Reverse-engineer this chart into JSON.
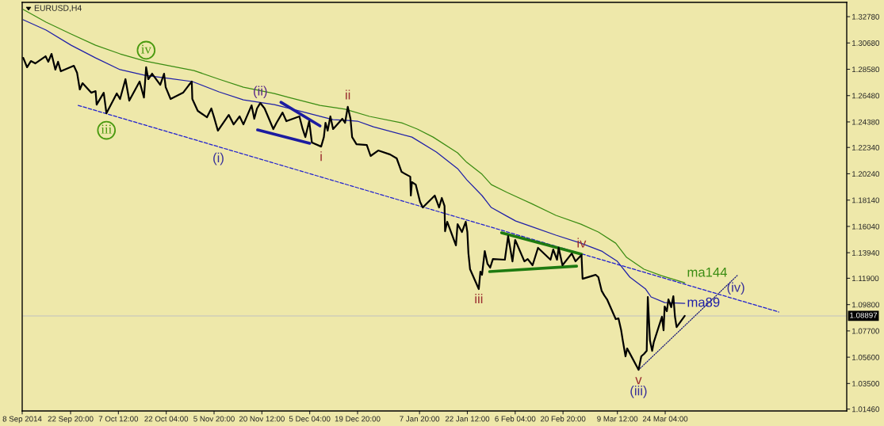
{
  "chart_data": {
    "type": "line",
    "title": "EURUSD,H4",
    "xlim": [
      "2014-09-08",
      "2015-05-18T20:00"
    ],
    "xticks": [
      {
        "value": "2014-09-08",
        "label": "8 Sep 2014"
      },
      {
        "value": "2014-09-22T20:00",
        "label": "22 Sep 20:00"
      },
      {
        "value": "2014-10-07T12:00",
        "label": "7 Oct 12:00"
      },
      {
        "value": "2014-10-22T04:00",
        "label": "22 Oct 04:00"
      },
      {
        "value": "2014-11-05T20:00",
        "label": "5 Nov 20:00"
      },
      {
        "value": "2014-11-20T12:00",
        "label": "20 Nov 12:00"
      },
      {
        "value": "2014-12-05T04:00",
        "label": "5 Dec 04:00"
      },
      {
        "value": "2014-12-19T20:00",
        "label": "19 Dec 20:00"
      },
      {
        "value": "2015-01-07T20:00",
        "label": "7 Jan 20:00"
      },
      {
        "value": "2015-01-22T12:00",
        "label": "22 Jan 12:00"
      },
      {
        "value": "2015-02-06T04:00",
        "label": "6 Feb 04:00"
      },
      {
        "value": "2015-02-20T20:00",
        "label": "20 Feb 20:00"
      },
      {
        "value": "2015-03-09T12:00",
        "label": "9 Mar 12:00"
      },
      {
        "value": "2015-03-24T04:00",
        "label": "24 Mar 04:00"
      }
    ],
    "ylim": [
      1.0131,
      1.3392
    ],
    "yticks": [
      {
        "value": 1.3278,
        "label": "1.32780"
      },
      {
        "value": 1.3068,
        "label": "1.30680"
      },
      {
        "value": 1.2858,
        "label": "1.28580"
      },
      {
        "value": 1.2648,
        "label": "1.26480"
      },
      {
        "value": 1.2438,
        "label": "1.24380"
      },
      {
        "value": 1.2234,
        "label": "1.22340"
      },
      {
        "value": 1.2024,
        "label": "1.20240"
      },
      {
        "value": 1.1814,
        "label": "1.18140"
      },
      {
        "value": 1.1604,
        "label": "1.16040"
      },
      {
        "value": 1.1394,
        "label": "1.13940"
      },
      {
        "value": 1.119,
        "label": "1.11900"
      },
      {
        "value": 1.098,
        "label": "1.09800"
      },
      {
        "value": 1.077,
        "label": "1.07700"
      },
      {
        "value": 1.056,
        "label": "1.05600"
      },
      {
        "value": 1.035,
        "label": "1.03500"
      },
      {
        "value": 1.0146,
        "label": "1.01460"
      }
    ],
    "series": [
      {
        "color": "#000000",
        "x": [
          "2014-09-08T08:00",
          "2014-09-09T12:00",
          "2014-09-10T16:00",
          "2014-09-12T00:00",
          "2014-09-15T04:00",
          "2014-09-16T00:00",
          "2014-09-17T00:00",
          "2014-09-18T04:00",
          "2014-09-19T00:00",
          "2014-09-19T20:00",
          "2014-09-23T20:00",
          "2014-09-24T20:00",
          "2014-09-25T16:00",
          "2014-09-26T12:00",
          "2014-09-29T04:00",
          "2014-09-30T12:00",
          "2014-09-30T20:00",
          "2014-10-03T00:00",
          "2014-10-03T20:00",
          "2014-10-07T00:00",
          "2014-10-08T00:00",
          "2014-10-09T16:00",
          "2014-10-10T20:00",
          "2014-10-14T00:00",
          "2014-10-15T08:00",
          "2014-10-16T00:00",
          "2014-10-16T16:00",
          "2014-10-17T20:00",
          "2014-10-20T08:00",
          "2014-10-21T12:00",
          "2014-10-22T00:00",
          "2014-10-23T12:00",
          "2014-10-27T08:00",
          "2014-10-29T00:00",
          "2014-10-30T00:00",
          "2014-10-30T04:00",
          "2014-10-31T20:00",
          "2014-11-03T16:00",
          "2014-11-05T00:00",
          "2014-11-05T20:00",
          "2014-11-07T00:00",
          "2014-11-10T08:00",
          "2014-11-11T20:00",
          "2014-11-13T16:00",
          "2014-11-14T20:00",
          "2014-11-17T08:00",
          "2014-11-18T04:00",
          "2014-11-19T00:00",
          "2014-11-20T00:00",
          "2014-11-21T08:00",
          "2014-11-24T00:00",
          "2014-11-25T00:00",
          "2014-11-26T20:00",
          "2014-11-28T00:00",
          "2014-12-02T00:00",
          "2014-12-03T00:00",
          "2014-12-03T20:00",
          "2014-12-05T00:00",
          "2014-12-05T20:00",
          "2014-12-08T16:00",
          "2014-12-09T12:00",
          "2014-12-10T00:00",
          "2014-12-10T16:00",
          "2014-12-11T12:00",
          "2014-12-12T08:00",
          "2014-12-15T04:00",
          "2014-12-16T00:00",
          "2014-12-16T20:00",
          "2014-12-17T16:00",
          "2014-12-18T04:00",
          "2014-12-19T12:00",
          "2014-12-22T16:00",
          "2014-12-23T20:00",
          "2014-12-26T04:00",
          "2014-12-29T20:00",
          "2014-12-31T20:00",
          "2015-01-02T08:00",
          "2015-01-05T00:00",
          "2015-01-05T04:00",
          "2015-01-05T12:00",
          "2015-01-06T16:00",
          "2015-01-08T00:00",
          "2015-01-08T20:00",
          "2015-01-12T12:00",
          "2015-01-13T20:00",
          "2015-01-14T16:00",
          "2015-01-15T12:00",
          "2015-01-15T16:00",
          "2015-01-16T08:00",
          "2015-01-19T00:00",
          "2015-01-19T12:00",
          "2015-01-20T20:00",
          "2015-01-22T00:00",
          "2015-01-22T12:00",
          "2015-01-22T20:00",
          "2015-01-23T08:00",
          "2015-01-26T00:00",
          "2015-01-26T12:00",
          "2015-01-27T00:00",
          "2015-01-27T20:00",
          "2015-01-28T16:00",
          "2015-01-29T12:00",
          "2015-01-30T08:00",
          "2015-02-03T00:00",
          "2015-02-04T00:00",
          "2015-02-05T08:00",
          "2015-02-06T04:00",
          "2015-02-09T00:00",
          "2015-02-10T00:00",
          "2015-02-11T12:00",
          "2015-02-13T04:00",
          "2015-02-17T00:00",
          "2015-02-17T20:00",
          "2015-02-19T00:00",
          "2015-02-19T12:00",
          "2015-02-20T16:00",
          "2015-02-23T12:00",
          "2015-02-24T16:00",
          "2015-02-26T12:00",
          "2015-02-26T20:00",
          "2015-03-02T00:00",
          "2015-03-02T20:00",
          "2015-03-03T16:00",
          "2015-03-04T16:00",
          "2015-03-05T12:00",
          "2015-03-06T08:00",
          "2015-03-09T00:00",
          "2015-03-09T20:00",
          "2015-03-10T16:00",
          "2015-03-11T04:00",
          "2015-03-12T00:00",
          "2015-03-12T12:00",
          "2015-03-13T04:00",
          "2015-03-16T00:00",
          "2015-03-16T20:00",
          "2015-03-17T16:00",
          "2015-03-18T12:00",
          "2015-03-18T20:00",
          "2015-03-19T12:00",
          "2015-03-20T04:00",
          "2015-03-20T16:00",
          "2015-03-23T04:00",
          "2015-03-23T16:00",
          "2015-03-24T00:00",
          "2015-03-24T16:00",
          "2015-03-25T04:00",
          "2015-03-26T00:00",
          "2015-03-26T16:00",
          "2015-03-27T04:00",
          "2015-03-27T16:00",
          "2015-03-30T04:00"
        ],
        "values": [
          1.2949,
          1.2874,
          1.2924,
          1.2905,
          1.2962,
          1.2918,
          1.2981,
          1.2855,
          1.2918,
          1.2842,
          1.2886,
          1.2829,
          1.2697,
          1.2747,
          1.2671,
          1.2684,
          1.2576,
          1.2671,
          1.2507,
          1.2665,
          1.2621,
          1.2779,
          1.2608,
          1.276,
          1.2633,
          1.2874,
          1.2779,
          1.2823,
          1.2734,
          1.2823,
          1.2715,
          1.2621,
          1.2671,
          1.2728,
          1.276,
          1.2621,
          1.2526,
          1.2475,
          1.2545,
          1.2475,
          1.2368,
          1.2494,
          1.2418,
          1.2482,
          1.2418,
          1.257,
          1.2463,
          1.2545,
          1.2589,
          1.2545,
          1.2381,
          1.2431,
          1.2513,
          1.2444,
          1.2482,
          1.2381,
          1.2317,
          1.2444,
          1.2273,
          1.2241,
          1.2317,
          1.2431,
          1.2368,
          1.2482,
          1.2381,
          1.2463,
          1.2431,
          1.2558,
          1.2463,
          1.2317,
          1.226,
          1.2254,
          1.2166,
          1.221,
          1.2178,
          1.2147,
          1.2039,
          1.2001,
          1.185,
          1.1957,
          1.1938,
          1.1799,
          1.1755,
          1.185,
          1.1755,
          1.1831,
          1.1767,
          1.1565,
          1.1641,
          1.1452,
          1.1622,
          1.1559,
          1.1641,
          1.1559,
          1.1388,
          1.1262,
          1.1104,
          1.1243,
          1.1218,
          1.1407,
          1.1306,
          1.1275,
          1.1344,
          1.1338,
          1.1527,
          1.1325,
          1.1496,
          1.1325,
          1.1344,
          1.1294,
          1.1433,
          1.1338,
          1.142,
          1.1338,
          1.1433,
          1.1294,
          1.1388,
          1.1325,
          1.1376,
          1.1186,
          1.1211,
          1.1218,
          1.1199,
          1.1091,
          1.1053,
          1.1022,
          1.0864,
          1.087,
          1.0775,
          1.0693,
          1.0567,
          1.063,
          1.0598,
          1.0459,
          1.0567,
          1.0586,
          1.0611,
          1.1041,
          1.0693,
          1.0611,
          1.068,
          1.0883,
          1.0775,
          1.0965,
          1.0927,
          1.1022,
          1.0959,
          1.1047,
          1.0883,
          1.08,
          1.089
        ]
      },
      {
        "name": "ma89",
        "color": "#1f1fa8",
        "x": [
          "2014-09-08T08:00",
          "2014-09-15T08:00",
          "2014-09-23T00:00",
          "2014-09-30T12:00",
          "2014-10-08T00:00",
          "2014-10-15T16:00",
          "2014-10-23T04:00",
          "2014-10-30T04:00",
          "2014-11-07T08:00",
          "2014-11-14T20:00",
          "2014-11-24T08:00",
          "2014-12-02T00:00",
          "2014-12-09T12:00",
          "2014-12-12T08:00",
          "2014-12-17T00:00",
          "2014-12-19T20:00",
          "2014-12-24T16:00",
          "2015-01-05T12:00",
          "2015-01-13T00:00",
          "2015-01-19T12:00",
          "2015-01-22T08:00",
          "2015-01-27T00:00",
          "2015-01-29T20:00",
          "2015-02-03T16:00",
          "2015-02-06T08:00",
          "2015-02-11T04:00",
          "2015-02-18T16:00",
          "2015-02-26T08:00",
          "2015-03-04T16:00",
          "2015-03-09T12:00",
          "2015-03-13T08:00",
          "2015-03-18T04:00",
          "2015-03-19T20:00",
          "2015-03-24T00:00",
          "2015-03-30T04:00"
        ],
        "values": [
          1.3253,
          1.3171,
          1.305,
          1.2949,
          1.2855,
          1.281,
          1.2785,
          1.276,
          1.2678,
          1.2614,
          1.2576,
          1.2526,
          1.2475,
          1.2456,
          1.245,
          1.2444,
          1.2399,
          1.2317,
          1.2197,
          1.2065,
          1.1976,
          1.185,
          1.1755,
          1.1685,
          1.1647,
          1.1603,
          1.1534,
          1.147,
          1.1407,
          1.1325,
          1.1199,
          1.1104,
          1.1041,
          1.0996,
          1.099
        ]
      },
      {
        "name": "ma144",
        "color": "#3a8c12",
        "x": [
          "2014-09-08T08:00",
          "2014-09-15T08:00",
          "2014-09-23T00:00",
          "2014-09-30T12:00",
          "2014-10-08T00:00",
          "2014-10-15T16:00",
          "2014-10-23T04:00",
          "2014-10-30T16:00",
          "2014-11-07T08:00",
          "2014-11-14T20:00",
          "2014-11-24T08:00",
          "2014-11-28T20:00",
          "2014-12-08T08:00",
          "2014-12-16T00:00",
          "2014-12-23T12:00",
          "2015-01-02T08:00",
          "2015-01-07T04:00",
          "2015-01-12T00:00",
          "2015-01-19T12:00",
          "2015-01-22T08:00",
          "2015-01-27T00:00",
          "2015-01-29T20:00",
          "2015-02-03T16:00",
          "2015-02-11T04:00",
          "2015-02-18T16:00",
          "2015-02-26T08:00",
          "2015-03-03T16:00",
          "2015-03-09T00:00",
          "2015-03-12T08:00",
          "2015-03-17T16:00",
          "2015-03-23T00:00",
          "2015-03-30T04:00"
        ],
        "values": [
          1.3335,
          1.3234,
          1.3139,
          1.305,
          1.2981,
          1.2924,
          1.2886,
          1.2848,
          1.2779,
          1.2715,
          1.2665,
          1.2633,
          1.257,
          1.2539,
          1.2482,
          1.2431,
          1.2381,
          1.2317,
          1.2191,
          1.2115,
          1.202,
          1.1938,
          1.1875,
          1.1786,
          1.1692,
          1.1622,
          1.1559,
          1.147,
          1.1357,
          1.1262,
          1.1211,
          1.1154
        ]
      },
      {
        "color": "#2020d0",
        "line_style": "dashed",
        "x": [
          "2014-09-25T04:00",
          "2015-04-28T00:00"
        ],
        "values": [
          1.257,
          1.0921
        ]
      },
      {
        "color": "#1a1a7a",
        "line_style": "dotted",
        "x": [
          "2015-03-16T00:00",
          "2015-04-15T12:00"
        ],
        "values": [
          1.0459,
          1.1218
        ]
      },
      {
        "color": "#1c1ca0",
        "x": [
          "2014-11-26T08:00",
          "2014-12-08T08:00"
        ],
        "values": [
          1.2595,
          1.2406
        ]
      },
      {
        "color": "#1c1ca0",
        "x": [
          "2014-11-19T04:00",
          "2014-12-05T04:00"
        ],
        "values": [
          1.2374,
          1.2267
        ]
      },
      {
        "color": "#1e7a10",
        "x": [
          "2015-02-02T00:00",
          "2015-02-26T12:00"
        ],
        "values": [
          1.1553,
          1.1382
        ]
      },
      {
        "color": "#1e7a10",
        "x": [
          "2015-01-29T08:00",
          "2015-02-25T00:00"
        ],
        "values": [
          1.1243,
          1.1287
        ]
      }
    ],
    "ref_lines": [
      {
        "axis": "y",
        "value": 1.08897,
        "label": "1.08897",
        "color": "#c0c0c0"
      }
    ],
    "annotations": [
      {
        "text": "iv",
        "x": "2014-10-16T00:00",
        "y": 1.2874
      },
      {
        "text": "iii",
        "x": "2014-10-03T20:00",
        "y": 1.2507
      },
      {
        "text": "(i)",
        "x": "2014-11-07T04:00",
        "y": 1.223
      },
      {
        "text": "(ii)",
        "x": "2014-11-20T00:00",
        "y": 1.2589
      },
      {
        "text": "ii",
        "x": "2014-12-16T20:00",
        "y": 1.2558
      },
      {
        "text": "i",
        "x": "2014-12-08T16:00",
        "y": 1.2241
      },
      {
        "text": "iii",
        "x": "2015-01-26T00:00",
        "y": 1.1104
      },
      {
        "text": "iv",
        "x": "2015-02-26T12:00",
        "y": 1.1376
      },
      {
        "text": "v",
        "x": "2015-03-16T00:00",
        "y": 1.0459
      },
      {
        "text": "(iii)",
        "x": "2015-03-16T00:00",
        "y": 1.0459
      },
      {
        "text": "(iv)",
        "x": "2015-04-14T20:00",
        "y": 1.1022
      }
    ]
  }
}
